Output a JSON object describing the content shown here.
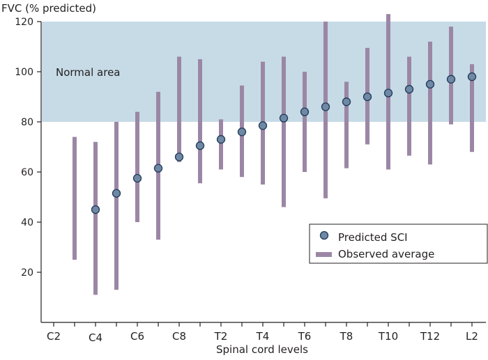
{
  "chart_data": {
    "type": "scatter",
    "ylabel": "FVC (% predicted)",
    "xlabel": "Spinal cord levels",
    "ylim": [
      0,
      120
    ],
    "yticks": [
      20,
      40,
      60,
      80,
      100,
      120
    ],
    "categories": [
      "C2",
      "C3",
      "C4",
      "C5",
      "C6",
      "C7",
      "C8",
      "T1",
      "T2",
      "T3",
      "T4",
      "T5",
      "T6",
      "T7",
      "T8",
      "T9",
      "T10",
      "T11",
      "T12",
      "L1",
      "L2"
    ],
    "tick_labels": [
      "C2",
      "C4",
      "C6",
      "C8",
      "T2",
      "T4",
      "T6",
      "T8",
      "T10",
      "T12",
      "L2"
    ],
    "normal_area": {
      "label": "Normal area",
      "range": [
        80,
        120
      ],
      "color": "#c6dbe6"
    },
    "series": [
      {
        "name": "Predicted SCI",
        "kind": "point",
        "color": "#6f88a3",
        "values": [
          null,
          null,
          45,
          51.5,
          57.5,
          61.5,
          66,
          70.5,
          73,
          76,
          78.5,
          81.5,
          84,
          86,
          88,
          90,
          91.5,
          93,
          95,
          97,
          98
        ]
      },
      {
        "name": "Observed average",
        "kind": "range",
        "color": "#9b87a5",
        "ranges": [
          null,
          [
            25,
            74
          ],
          [
            11,
            72
          ],
          [
            13,
            80
          ],
          [
            40,
            84
          ],
          [
            33,
            92
          ],
          [
            64,
            106
          ],
          [
            55.5,
            105
          ],
          [
            61,
            81
          ],
          [
            58,
            94.5
          ],
          [
            55,
            104
          ],
          [
            46,
            106
          ],
          [
            60,
            100
          ],
          [
            49.5,
            120
          ],
          [
            61.5,
            96
          ],
          [
            71,
            109.5
          ],
          [
            61,
            123
          ],
          [
            66.5,
            106
          ],
          [
            63,
            112
          ],
          [
            79,
            118
          ],
          [
            68,
            103
          ]
        ]
      }
    ],
    "legend": "bottom-right",
    "grid": false
  }
}
